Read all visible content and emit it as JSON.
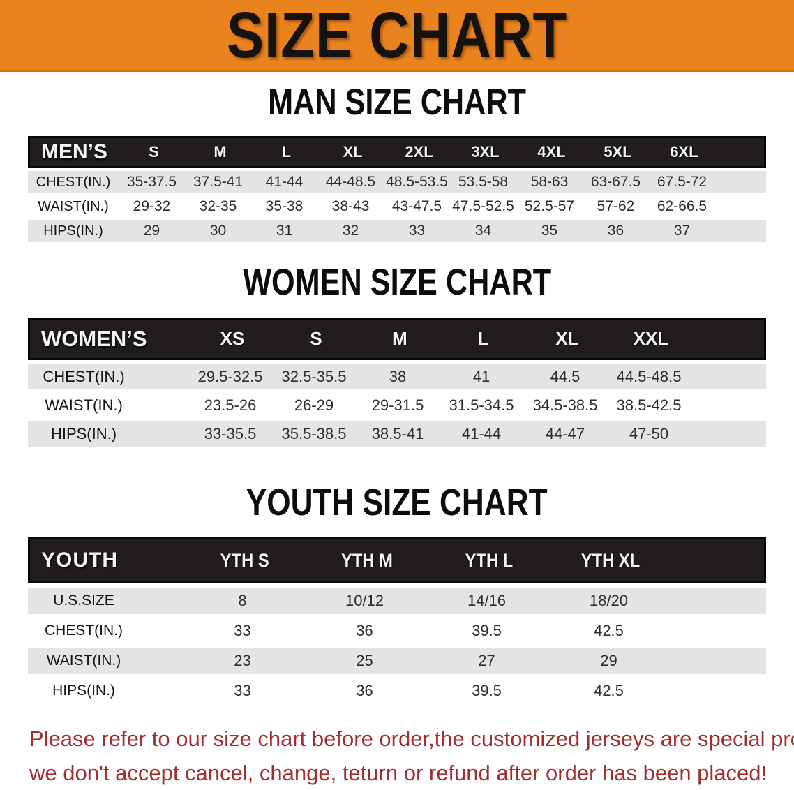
{
  "banner": {
    "title": "SIZE CHART",
    "bg_color": "#E8831E"
  },
  "sections": [
    {
      "heading": "MAN SIZE CHART",
      "table": {
        "group_label": "MEN’S",
        "columns": [
          "S",
          "M",
          "L",
          "XL",
          "2XL",
          "3XL",
          "4XL",
          "5XL",
          "6XL"
        ],
        "rows": [
          {
            "label": "CHEST(IN.)",
            "values": [
              "35-37.5",
              "37.5-41",
              "41-44",
              "44-48.5",
              "48.5-53.5",
              "53.5-58",
              "58-63",
              "63-67.5",
              "67.5-72"
            ]
          },
          {
            "label": "WAIST(IN.)",
            "values": [
              "29-32",
              "32-35",
              "35-38",
              "38-43",
              "43-47.5",
              "47.5-52.5",
              "52.5-57",
              "57-62",
              "62-66.5"
            ]
          },
          {
            "label": "HIPS(IN.)",
            "values": [
              "29",
              "30",
              "31",
              "32",
              "33",
              "34",
              "35",
              "36",
              "37"
            ]
          }
        ]
      }
    },
    {
      "heading": "WOMEN SIZE CHART",
      "table": {
        "group_label": "WOMEN’S",
        "columns": [
          "XS",
          "S",
          "M",
          "L",
          "XL",
          "XXL"
        ],
        "rows": [
          {
            "label": "CHEST(IN.)",
            "values": [
              "29.5-32.5",
              "32.5-35.5",
              "38",
              "41",
              "44.5",
              "44.5-48.5"
            ]
          },
          {
            "label": "WAIST(IN.)",
            "values": [
              "23.5-26",
              "26-29",
              "29-31.5",
              "31.5-34.5",
              "34.5-38.5",
              "38.5-42.5"
            ]
          },
          {
            "label": "HIPS(IN.)",
            "values": [
              "33-35.5",
              "35.5-38.5",
              "38.5-41",
              "41-44",
              "44-47",
              "47-50"
            ]
          }
        ]
      }
    },
    {
      "heading": "YOUTH SIZE CHART",
      "table": {
        "group_label": "YOUTH",
        "columns": [
          "YTH S",
          "YTH M",
          "YTH L",
          "YTH XL"
        ],
        "rows": [
          {
            "label": "U.S.SIZE",
            "values": [
              "8",
              "10/12",
              "14/16",
              "18/20"
            ]
          },
          {
            "label": "CHEST(IN.)",
            "values": [
              "33",
              "36",
              "39.5",
              "42.5"
            ]
          },
          {
            "label": "WAIST(IN.)",
            "values": [
              "23",
              "25",
              "27",
              "29"
            ]
          },
          {
            "label": "HIPS(IN.)",
            "values": [
              "33",
              "36",
              "39.5",
              "42.5"
            ]
          }
        ]
      }
    }
  ],
  "disclaimer": {
    "line1": "Please refer to our size chart before order,the customized jerseys are special products,",
    "line2": "we don't accept cancel, change, teturn or refund after order has been placed!",
    "color": "#A32E2E"
  }
}
